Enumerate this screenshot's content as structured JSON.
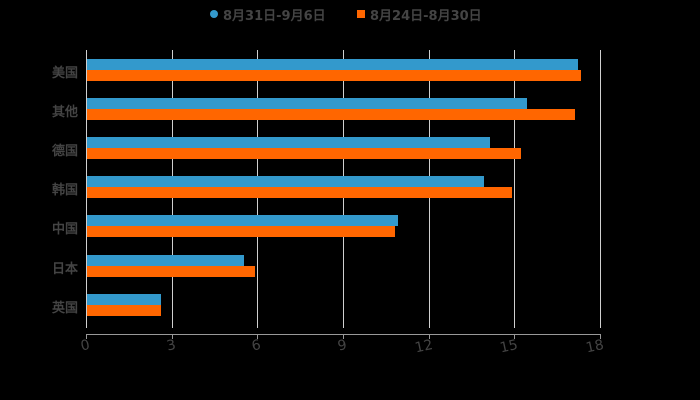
{
  "legend": [
    {
      "label": "8月31日-9月6日",
      "color": "#3399cc",
      "shape": "circle"
    },
    {
      "label": "8月24日-8月30日",
      "color": "#ff6600",
      "shape": "square"
    }
  ],
  "chart_data": {
    "type": "bar",
    "orientation": "horizontal",
    "title": "",
    "xlabel": "",
    "ylabel": "",
    "categories": [
      "美国",
      "其他",
      "德国",
      "韩国",
      "中国",
      "日本",
      "英国"
    ],
    "series": [
      {
        "name": "8月31日-9月6日",
        "color": "#3399cc",
        "values": [
          17.2,
          15.4,
          14.1,
          13.9,
          10.9,
          5.5,
          2.6
        ]
      },
      {
        "name": "8月24日-8月30日",
        "color": "#ff6600",
        "values": [
          17.3,
          17.1,
          15.2,
          14.9,
          10.8,
          5.9,
          2.6
        ]
      }
    ],
    "xlim": [
      0,
      18
    ],
    "xticks": [
      "0",
      "3",
      "6",
      "9",
      "12",
      "15",
      "18"
    ],
    "grid": "vertical",
    "legend_position": "top"
  }
}
